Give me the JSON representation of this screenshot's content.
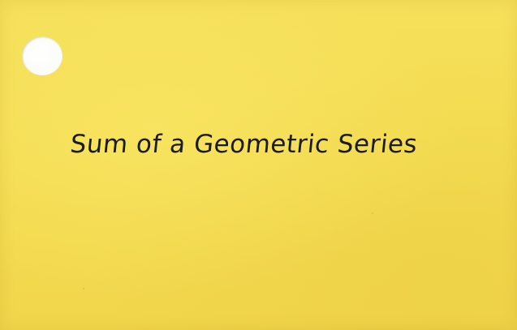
{
  "card": {
    "title": "Sum of a Geometric Series",
    "background_color": "#f3d94a",
    "text_color": "#1c1c1c"
  }
}
